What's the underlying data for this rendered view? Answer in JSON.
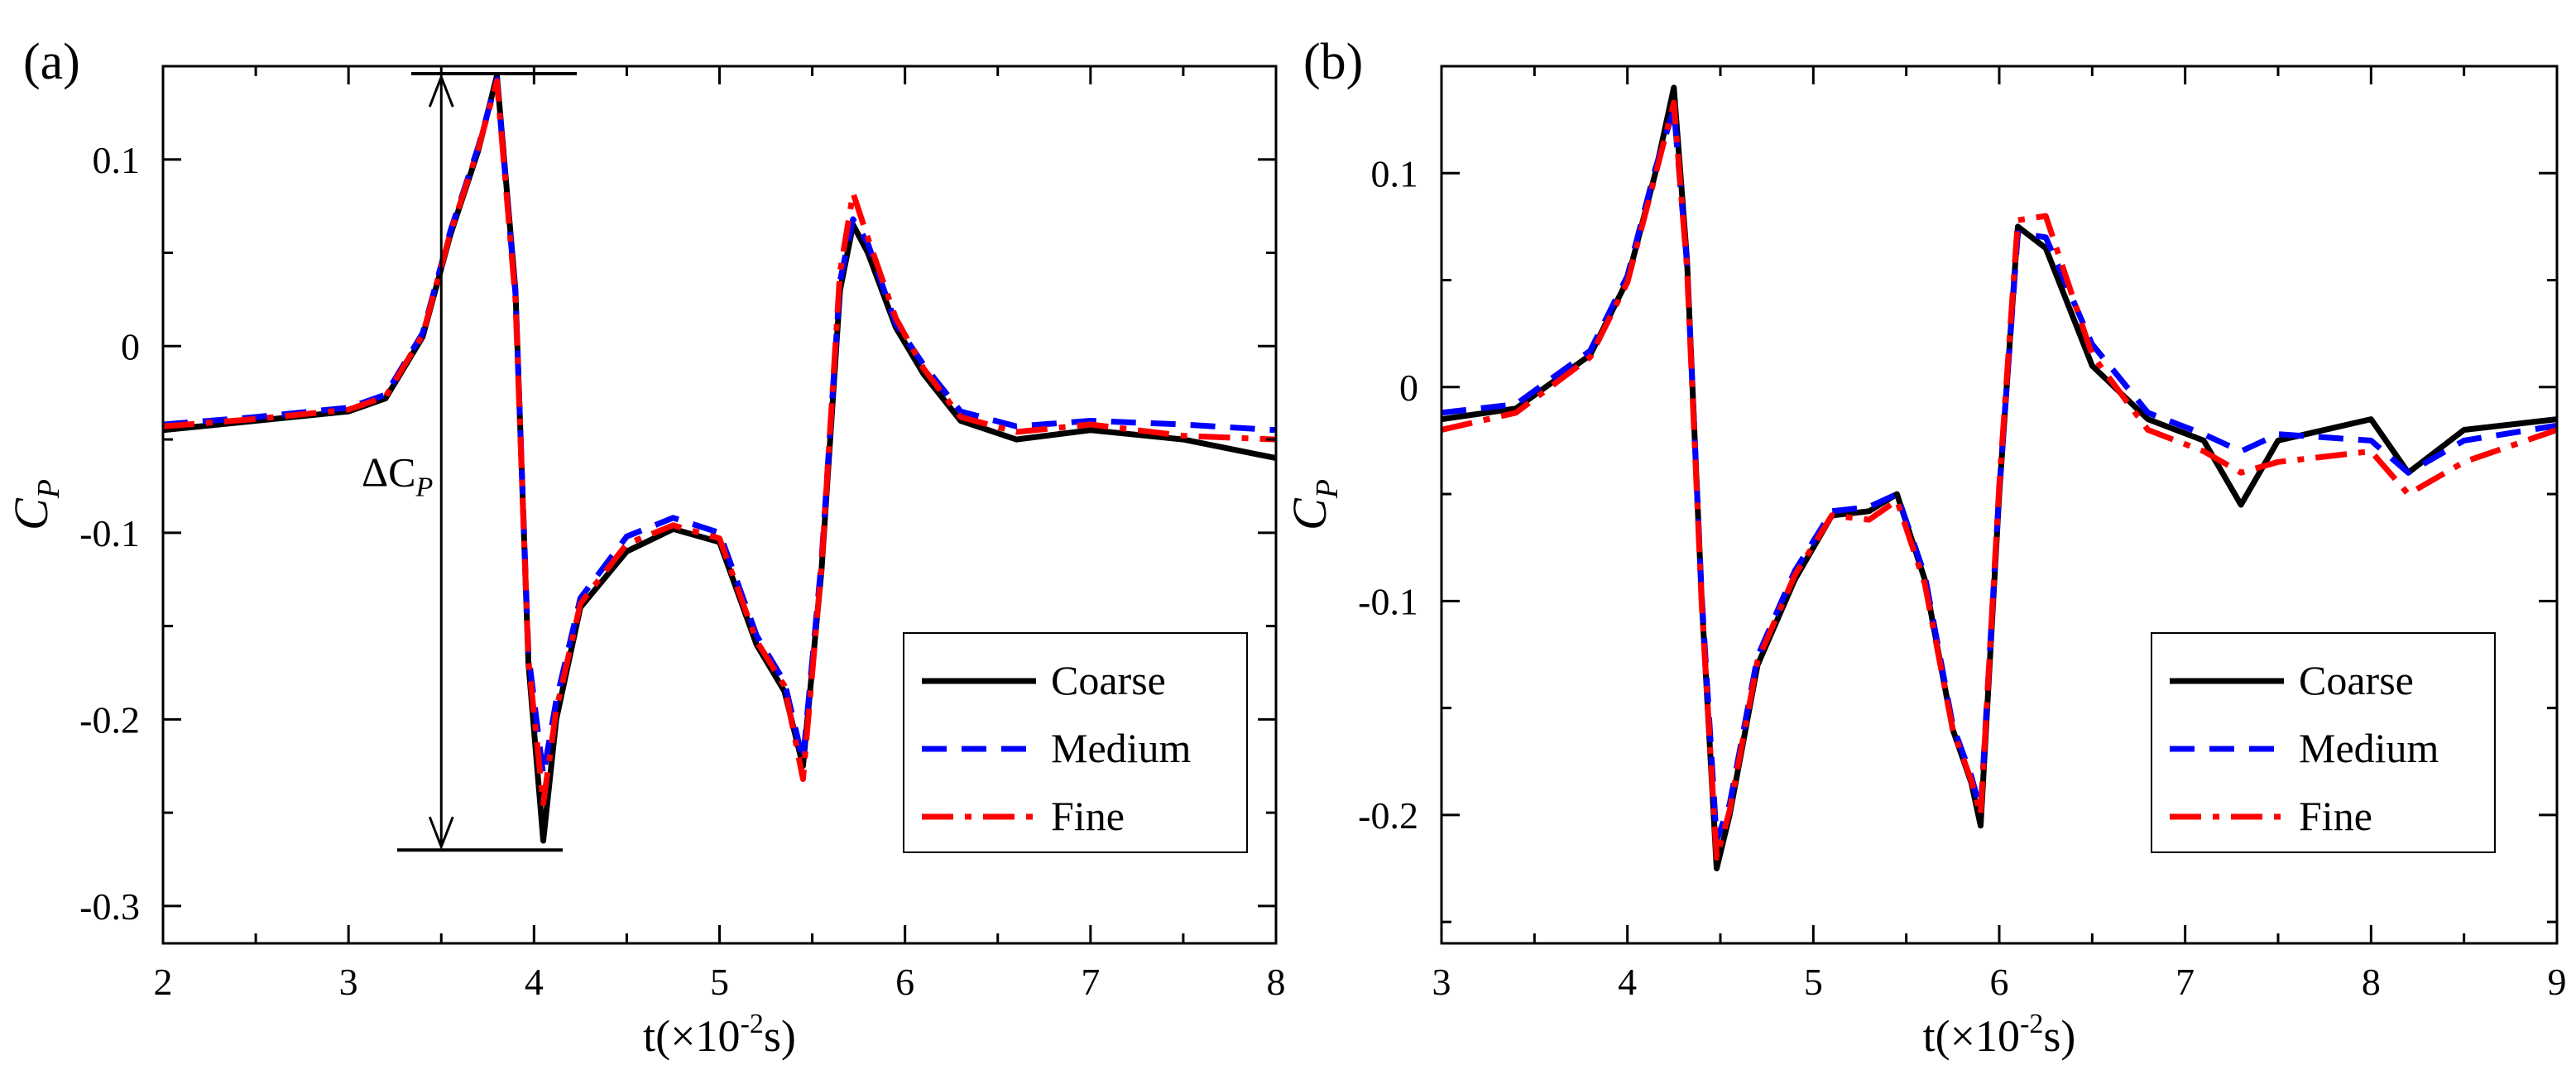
{
  "colors": {
    "coarse": "#000000",
    "medium": "#0000ff",
    "fine": "#ff0000"
  },
  "chart_data": [
    {
      "type": "line",
      "panel_label": "(a)",
      "xlabel": "t(×10",
      "xlabel_sup": "-2",
      "xlabel_tail": "s)",
      "ylabel": "C",
      "ylabel_sub": "P",
      "xlim": [
        2,
        8
      ],
      "ylim": [
        -0.32,
        0.15
      ],
      "xticks": [
        2,
        3,
        4,
        5,
        6,
        7,
        8
      ],
      "xtick_labels": [
        "2",
        "3",
        "4",
        "5",
        "6",
        "7",
        "8"
      ],
      "yticks": [
        0.1,
        0,
        -0.1,
        -0.2,
        -0.3
      ],
      "ytick_labels": [
        "0.1",
        "0",
        "-0.1",
        "-0.2",
        "-0.3"
      ],
      "legend": [
        "Coarse",
        "Medium",
        "Fine"
      ],
      "legend_position": "lower-right",
      "annotation": {
        "text": "ΔC",
        "sub": "P",
        "y_top": 0.146,
        "y_bottom": -0.27,
        "x_arrow": 3.5
      },
      "series": [
        {
          "name": "Coarse",
          "style": "solid",
          "x": [
            2.0,
            2.5,
            3.0,
            3.2,
            3.4,
            3.55,
            3.7,
            3.8,
            3.9,
            3.97,
            4.05,
            4.12,
            4.25,
            4.5,
            4.75,
            5.0,
            5.2,
            5.35,
            5.45,
            5.55,
            5.65,
            5.72,
            5.8,
            5.95,
            6.1,
            6.3,
            6.6,
            7.0,
            7.5,
            8.0
          ],
          "y": [
            -0.045,
            -0.04,
            -0.035,
            -0.028,
            0.005,
            0.06,
            0.105,
            0.145,
            0.03,
            -0.17,
            -0.265,
            -0.2,
            -0.14,
            -0.11,
            -0.098,
            -0.105,
            -0.16,
            -0.185,
            -0.225,
            -0.12,
            0.03,
            0.065,
            0.05,
            0.01,
            -0.015,
            -0.04,
            -0.05,
            -0.045,
            -0.05,
            -0.06
          ]
        },
        {
          "name": "Medium",
          "style": "dashed",
          "x": [
            2.0,
            2.5,
            3.0,
            3.2,
            3.4,
            3.55,
            3.7,
            3.8,
            3.9,
            3.97,
            4.05,
            4.12,
            4.25,
            4.5,
            4.75,
            5.0,
            5.2,
            5.35,
            5.45,
            5.55,
            5.65,
            5.72,
            5.8,
            5.95,
            6.1,
            6.3,
            6.6,
            7.0,
            7.5,
            8.0
          ],
          "y": [
            -0.042,
            -0.038,
            -0.033,
            -0.026,
            0.007,
            0.062,
            0.107,
            0.143,
            0.028,
            -0.165,
            -0.23,
            -0.19,
            -0.135,
            -0.102,
            -0.092,
            -0.1,
            -0.155,
            -0.18,
            -0.222,
            -0.115,
            0.035,
            0.068,
            0.055,
            0.012,
            -0.01,
            -0.035,
            -0.043,
            -0.04,
            -0.042,
            -0.045
          ]
        },
        {
          "name": "Fine",
          "style": "dashdot",
          "x": [
            2.0,
            2.5,
            3.0,
            3.2,
            3.4,
            3.55,
            3.7,
            3.8,
            3.9,
            3.97,
            4.05,
            4.12,
            4.25,
            4.5,
            4.75,
            5.0,
            5.2,
            5.35,
            5.45,
            5.55,
            5.65,
            5.72,
            5.8,
            5.95,
            6.1,
            6.3,
            6.6,
            7.0,
            7.5,
            8.0
          ],
          "y": [
            -0.043,
            -0.039,
            -0.034,
            -0.027,
            0.006,
            0.061,
            0.106,
            0.142,
            0.025,
            -0.168,
            -0.245,
            -0.195,
            -0.138,
            -0.106,
            -0.096,
            -0.103,
            -0.158,
            -0.182,
            -0.232,
            -0.118,
            0.04,
            0.082,
            0.058,
            0.015,
            -0.012,
            -0.038,
            -0.046,
            -0.042,
            -0.048,
            -0.05
          ]
        }
      ]
    },
    {
      "type": "line",
      "panel_label": "(b)",
      "xlabel": "t(×10",
      "xlabel_sup": "-2",
      "xlabel_tail": "s)",
      "ylabel": "C",
      "ylabel_sub": "P",
      "xlim": [
        3,
        9
      ],
      "ylim": [
        -0.26,
        0.15
      ],
      "xticks": [
        3,
        4,
        5,
        6,
        7,
        8,
        9
      ],
      "xtick_labels": [
        "3",
        "4",
        "5",
        "6",
        "7",
        "8",
        "9"
      ],
      "yticks": [
        0.1,
        0,
        -0.1,
        -0.2
      ],
      "ytick_labels": [
        "0.1",
        "0",
        "-0.1",
        "-0.2"
      ],
      "legend": [
        "Coarse",
        "Medium",
        "Fine"
      ],
      "legend_position": "lower-right",
      "series": [
        {
          "name": "Coarse",
          "style": "solid",
          "x": [
            3.0,
            3.4,
            3.8,
            4.0,
            4.15,
            4.25,
            4.32,
            4.4,
            4.48,
            4.55,
            4.7,
            4.9,
            5.1,
            5.3,
            5.45,
            5.6,
            5.75,
            5.85,
            5.9,
            6.0,
            6.1,
            6.25,
            6.5,
            6.8,
            7.1,
            7.3,
            7.5,
            8.0,
            8.2,
            8.5,
            9.0
          ],
          "y": [
            -0.015,
            -0.01,
            0.015,
            0.05,
            0.1,
            0.14,
            0.06,
            -0.1,
            -0.225,
            -0.2,
            -0.13,
            -0.09,
            -0.06,
            -0.058,
            -0.05,
            -0.09,
            -0.16,
            -0.185,
            -0.205,
            -0.05,
            0.075,
            0.065,
            0.01,
            -0.015,
            -0.025,
            -0.055,
            -0.025,
            -0.015,
            -0.04,
            -0.02,
            -0.015
          ]
        },
        {
          "name": "Medium",
          "style": "dashed",
          "x": [
            3.0,
            3.4,
            3.8,
            4.0,
            4.15,
            4.25,
            4.32,
            4.4,
            4.48,
            4.55,
            4.7,
            4.9,
            5.1,
            5.3,
            5.45,
            5.6,
            5.75,
            5.85,
            5.9,
            6.0,
            6.1,
            6.25,
            6.5,
            6.8,
            7.1,
            7.3,
            7.5,
            8.0,
            8.2,
            8.5,
            9.0
          ],
          "y": [
            -0.012,
            -0.008,
            0.017,
            0.052,
            0.102,
            0.13,
            0.058,
            -0.098,
            -0.212,
            -0.195,
            -0.126,
            -0.086,
            -0.058,
            -0.056,
            -0.05,
            -0.088,
            -0.158,
            -0.182,
            -0.198,
            -0.048,
            0.072,
            0.07,
            0.02,
            -0.012,
            -0.022,
            -0.03,
            -0.022,
            -0.025,
            -0.04,
            -0.025,
            -0.018
          ]
        },
        {
          "name": "Fine",
          "style": "dashdot",
          "x": [
            3.0,
            3.4,
            3.8,
            4.0,
            4.15,
            4.25,
            4.32,
            4.4,
            4.48,
            4.55,
            4.7,
            4.9,
            5.1,
            5.3,
            5.45,
            5.6,
            5.75,
            5.85,
            5.9,
            6.0,
            6.1,
            6.25,
            6.5,
            6.8,
            7.1,
            7.3,
            7.5,
            8.0,
            8.2,
            8.5,
            9.0
          ],
          "y": [
            -0.02,
            -0.012,
            0.014,
            0.049,
            0.099,
            0.133,
            0.056,
            -0.102,
            -0.22,
            -0.198,
            -0.128,
            -0.088,
            -0.06,
            -0.062,
            -0.053,
            -0.092,
            -0.16,
            -0.184,
            -0.2,
            -0.046,
            0.078,
            0.08,
            0.015,
            -0.02,
            -0.03,
            -0.04,
            -0.035,
            -0.03,
            -0.05,
            -0.035,
            -0.02
          ]
        }
      ]
    }
  ]
}
